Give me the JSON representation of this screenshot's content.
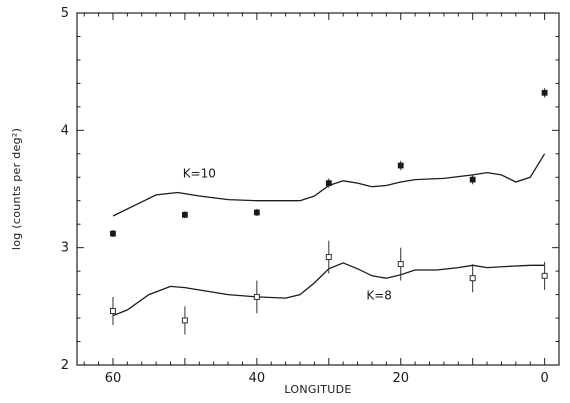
{
  "chart_data": {
    "type": "scatter",
    "xlabel": "LONGITUDE",
    "ylabel": "log (counts per deg²)",
    "xlim": [
      65,
      -2
    ],
    "ylim": [
      2,
      5
    ],
    "x_ticks": [
      60,
      40,
      20,
      0
    ],
    "x_tick_labels": [
      "60",
      "40",
      "20",
      "0"
    ],
    "y_ticks": [
      2,
      3,
      4,
      5
    ],
    "y_tick_labels": [
      "2",
      "3",
      "4",
      "5"
    ],
    "grid": false,
    "series": [
      {
        "name": "K=10",
        "kind": "observed",
        "marker": "filled-square",
        "points": [
          {
            "x": 60,
            "y": 3.12,
            "err": 0.03
          },
          {
            "x": 50,
            "y": 3.28,
            "err": 0.03
          },
          {
            "x": 40,
            "y": 3.3,
            "err": 0.03
          },
          {
            "x": 30,
            "y": 3.55,
            "err": 0.04
          },
          {
            "x": 20,
            "y": 3.7,
            "err": 0.04
          },
          {
            "x": 10,
            "y": 3.58,
            "err": 0.04
          },
          {
            "x": 0,
            "y": 4.32,
            "err": 0.04
          }
        ]
      },
      {
        "name": "K=10",
        "kind": "model",
        "points": [
          {
            "x": 60,
            "y": 3.27
          },
          {
            "x": 57,
            "y": 3.36
          },
          {
            "x": 54,
            "y": 3.45
          },
          {
            "x": 51,
            "y": 3.47
          },
          {
            "x": 48,
            "y": 3.44
          },
          {
            "x": 44,
            "y": 3.41
          },
          {
            "x": 40,
            "y": 3.4
          },
          {
            "x": 36,
            "y": 3.4
          },
          {
            "x": 34,
            "y": 3.4
          },
          {
            "x": 32,
            "y": 3.44
          },
          {
            "x": 30,
            "y": 3.53
          },
          {
            "x": 28,
            "y": 3.57
          },
          {
            "x": 26,
            "y": 3.55
          },
          {
            "x": 24,
            "y": 3.52
          },
          {
            "x": 22,
            "y": 3.53
          },
          {
            "x": 20,
            "y": 3.56
          },
          {
            "x": 18,
            "y": 3.58
          },
          {
            "x": 14,
            "y": 3.59
          },
          {
            "x": 10,
            "y": 3.62
          },
          {
            "x": 8,
            "y": 3.64
          },
          {
            "x": 6,
            "y": 3.62
          },
          {
            "x": 4,
            "y": 3.56
          },
          {
            "x": 2,
            "y": 3.6
          },
          {
            "x": 0,
            "y": 3.8
          }
        ]
      },
      {
        "name": "K=8",
        "kind": "observed",
        "marker": "open-square",
        "points": [
          {
            "x": 60,
            "y": 2.46,
            "err": 0.12
          },
          {
            "x": 50,
            "y": 2.38,
            "err": 0.12
          },
          {
            "x": 40,
            "y": 2.58,
            "err": 0.14
          },
          {
            "x": 30,
            "y": 2.92,
            "err": 0.14
          },
          {
            "x": 20,
            "y": 2.86,
            "err": 0.14
          },
          {
            "x": 10,
            "y": 2.74,
            "err": 0.12
          },
          {
            "x": 0,
            "y": 2.76,
            "err": 0.12
          }
        ]
      },
      {
        "name": "K=8",
        "kind": "model",
        "points": [
          {
            "x": 60,
            "y": 2.42
          },
          {
            "x": 58,
            "y": 2.47
          },
          {
            "x": 55,
            "y": 2.6
          },
          {
            "x": 52,
            "y": 2.67
          },
          {
            "x": 50,
            "y": 2.66
          },
          {
            "x": 47,
            "y": 2.63
          },
          {
            "x": 44,
            "y": 2.6
          },
          {
            "x": 40,
            "y": 2.58
          },
          {
            "x": 36,
            "y": 2.57
          },
          {
            "x": 34,
            "y": 2.6
          },
          {
            "x": 32,
            "y": 2.7
          },
          {
            "x": 30,
            "y": 2.82
          },
          {
            "x": 28,
            "y": 2.87
          },
          {
            "x": 26,
            "y": 2.82
          },
          {
            "x": 24,
            "y": 2.76
          },
          {
            "x": 22,
            "y": 2.74
          },
          {
            "x": 20,
            "y": 2.77
          },
          {
            "x": 18,
            "y": 2.81
          },
          {
            "x": 15,
            "y": 2.81
          },
          {
            "x": 12,
            "y": 2.83
          },
          {
            "x": 10,
            "y": 2.85
          },
          {
            "x": 8,
            "y": 2.83
          },
          {
            "x": 5,
            "y": 2.84
          },
          {
            "x": 2,
            "y": 2.85
          },
          {
            "x": 0,
            "y": 2.85
          }
        ]
      }
    ],
    "annotations": [
      {
        "text": "K=10",
        "x": 48,
        "y": 3.6
      },
      {
        "text": "K=8",
        "x": 23,
        "y": 2.56
      }
    ]
  }
}
